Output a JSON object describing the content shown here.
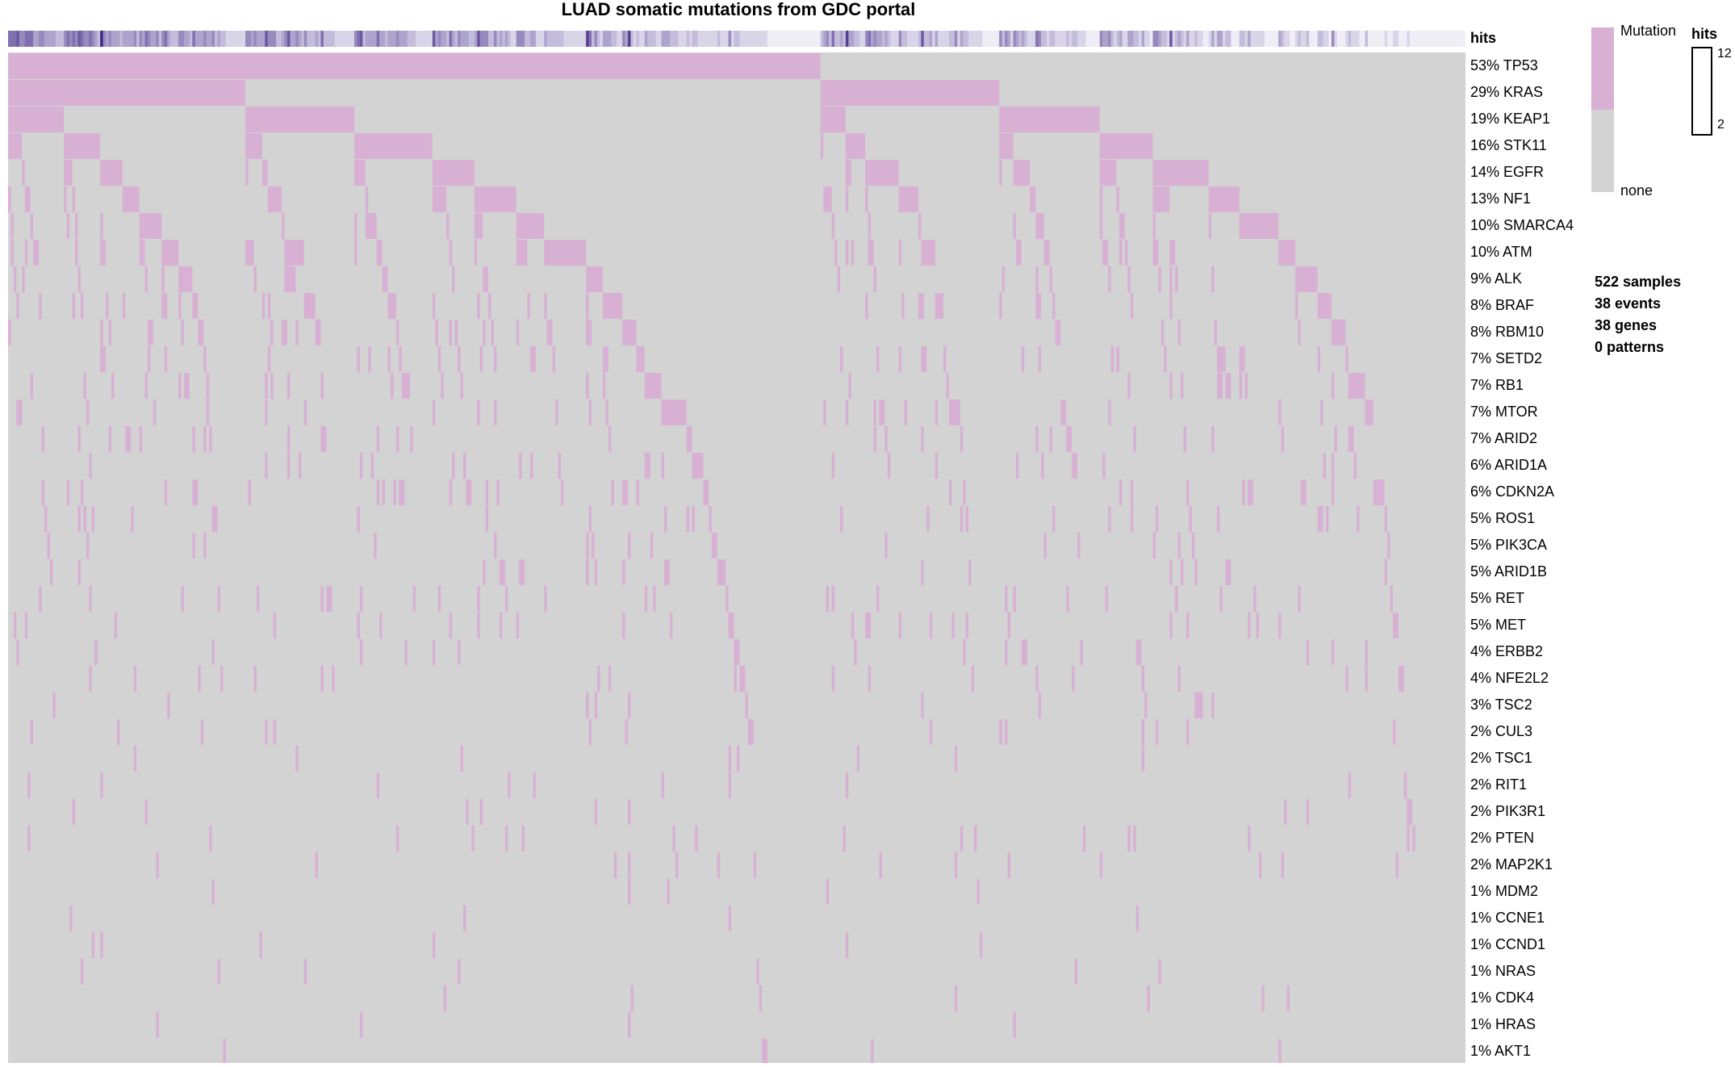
{
  "chart_data": {
    "type": "heatmap",
    "title": "LUAD somatic mutations from GDC portal",
    "top_annotation_label": "hits",
    "genes": [
      {
        "pct": "53%",
        "name": "TP53",
        "value": 53
      },
      {
        "pct": "29%",
        "name": "KRAS",
        "value": 29
      },
      {
        "pct": "19%",
        "name": "KEAP1",
        "value": 19
      },
      {
        "pct": "16%",
        "name": "STK11",
        "value": 16
      },
      {
        "pct": "14%",
        "name": "EGFR",
        "value": 14
      },
      {
        "pct": "13%",
        "name": "NF1",
        "value": 13
      },
      {
        "pct": "10%",
        "name": "SMARCA4",
        "value": 10
      },
      {
        "pct": "10%",
        "name": "ATM",
        "value": 10
      },
      {
        "pct": "9%",
        "name": "ALK",
        "value": 9
      },
      {
        "pct": "8%",
        "name": "BRAF",
        "value": 8
      },
      {
        "pct": "8%",
        "name": "RBM10",
        "value": 8
      },
      {
        "pct": "7%",
        "name": "SETD2",
        "value": 7
      },
      {
        "pct": "7%",
        "name": "RB1",
        "value": 7
      },
      {
        "pct": "7%",
        "name": "MTOR",
        "value": 7
      },
      {
        "pct": "7%",
        "name": "ARID2",
        "value": 7
      },
      {
        "pct": "6%",
        "name": "ARID1A",
        "value": 6
      },
      {
        "pct": "6%",
        "name": "CDKN2A",
        "value": 6
      },
      {
        "pct": "5%",
        "name": "ROS1",
        "value": 5
      },
      {
        "pct": "5%",
        "name": "PIK3CA",
        "value": 5
      },
      {
        "pct": "5%",
        "name": "ARID1B",
        "value": 5
      },
      {
        "pct": "5%",
        "name": "RET",
        "value": 5
      },
      {
        "pct": "5%",
        "name": "MET",
        "value": 5
      },
      {
        "pct": "4%",
        "name": "ERBB2",
        "value": 4
      },
      {
        "pct": "4%",
        "name": "NFE2L2",
        "value": 4
      },
      {
        "pct": "3%",
        "name": "TSC2",
        "value": 3
      },
      {
        "pct": "2%",
        "name": "CUL3",
        "value": 2
      },
      {
        "pct": "2%",
        "name": "TSC1",
        "value": 2
      },
      {
        "pct": "2%",
        "name": "RIT1",
        "value": 2
      },
      {
        "pct": "2%",
        "name": "PIK3R1",
        "value": 2
      },
      {
        "pct": "2%",
        "name": "PTEN",
        "value": 2
      },
      {
        "pct": "2%",
        "name": "MAP2K1",
        "value": 2
      },
      {
        "pct": "1%",
        "name": "MDM2",
        "value": 1
      },
      {
        "pct": "1%",
        "name": "CCNE1",
        "value": 1
      },
      {
        "pct": "1%",
        "name": "CCND1",
        "value": 1
      },
      {
        "pct": "1%",
        "name": "NRAS",
        "value": 1
      },
      {
        "pct": "1%",
        "name": "CDK4",
        "value": 1
      },
      {
        "pct": "1%",
        "name": "HRAS",
        "value": 1
      },
      {
        "pct": "1%",
        "name": "AKT1",
        "value": 1
      }
    ],
    "num_samples": 522,
    "legend": {
      "mutation_title": "Mutation",
      "none_label": "none",
      "hits_title": "hits",
      "hits_max": "12",
      "hits_min": "2"
    },
    "stats": [
      "522 samples",
      "38 events",
      "38 genes",
      "0 patterns"
    ],
    "colors": {
      "mutation": "#d8b0d3",
      "none": "#d3d3d3",
      "hits_low": "#efeef7",
      "hits_high": "#3f2585"
    }
  }
}
